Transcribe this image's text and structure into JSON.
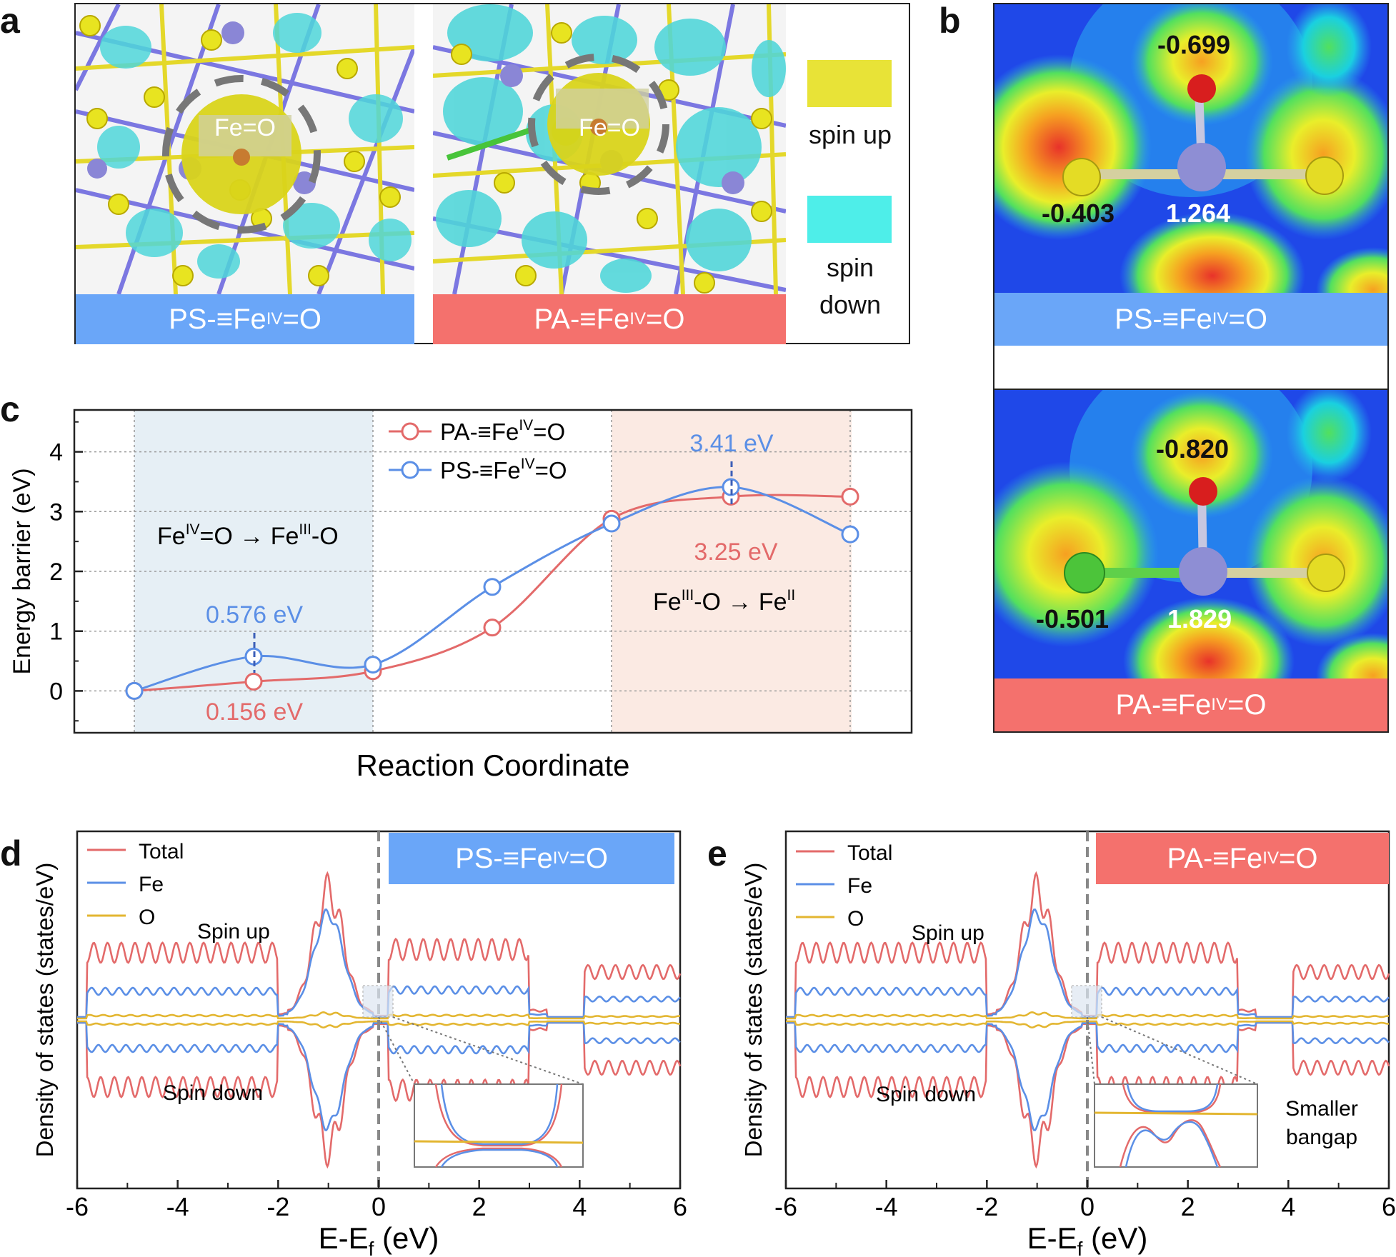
{
  "colors": {
    "ps_blue": "#5b8fe6",
    "pa_red": "#e36a6a",
    "ps_bar": "#6aa6f8",
    "pa_bar": "#f4716d",
    "o_orange": "#e3b631",
    "spin_up_yellow": "#e8e337",
    "spin_down_cyan": "#4eeee9"
  },
  "panel_a": {
    "label": "a",
    "left_center_label": "Fe=O",
    "right_center_label": "Fe=O",
    "left_bar": {
      "pre": "PS-≡Fe",
      "sup": "IV",
      "post": "=O"
    },
    "right_bar": {
      "pre": "PA-≡Fe",
      "sup": "IV",
      "post": "=O"
    },
    "legend_up": "spin up",
    "legend_down_1": "spin",
    "legend_down_2": "down"
  },
  "panel_b": {
    "label": "b",
    "top": {
      "o_charge": "-0.699",
      "s_charge": "-0.403",
      "fe_charge": "1.264",
      "bar": {
        "pre": "PS-≡Fe",
        "sup": "IV",
        "post": "=O"
      }
    },
    "bottom": {
      "o_charge": "-0.820",
      "cl_charge": "-0.501",
      "fe_charge": "1.829",
      "bar": {
        "pre": "PA-≡Fe",
        "sup": "IV",
        "post": "=O"
      }
    }
  },
  "panel_c": {
    "label": "c",
    "region1": {
      "a": "Fe",
      "a_sup": "IV",
      "b": "=O → Fe",
      "b_sup": "III",
      "c": "-O"
    },
    "region2": {
      "a": "Fe",
      "a_sup": "III",
      "b": "-O → Fe",
      "b_sup": "II"
    },
    "ann_ps_1": "0.576 eV",
    "ann_pa_1": "0.156 eV",
    "ann_ps_2": "3.41 eV",
    "ann_pa_2": "3.25 eV"
  },
  "panel_d": {
    "label": "d",
    "bar": {
      "pre": "PS-≡Fe",
      "sup": "IV",
      "post": "=O"
    },
    "spin_up": "Spin up",
    "spin_down": "Spin down"
  },
  "panel_e": {
    "label": "e",
    "bar": {
      "pre": "PA-≡Fe",
      "sup": "IV",
      "post": "=O"
    },
    "spin_up": "Spin up",
    "spin_down": "Spin down",
    "note_1": "Smaller",
    "note_2": "bangap"
  },
  "chart_data": [
    {
      "type": "line",
      "panel": "c",
      "xlabel": "Reaction Coordinate",
      "ylabel": "Energy barrier (eV)",
      "ylim": [
        -0.7,
        4.7
      ],
      "yticks": [
        0,
        1,
        2,
        3,
        4
      ],
      "x": [
        0,
        1,
        2,
        3,
        4,
        5,
        6
      ],
      "series": [
        {
          "name": "PA-≡FeIV=O",
          "legend_pre": "PA-≡Fe",
          "legend_sup": "IV",
          "legend_post": "=O",
          "values": [
            0,
            0.156,
            0.33,
            1.06,
            2.88,
            3.25,
            3.25
          ]
        },
        {
          "name": "PS-≡FeIV=O",
          "legend_pre": "PS-≡Fe",
          "legend_sup": "IV",
          "legend_post": "=O",
          "values": [
            0,
            0.576,
            0.44,
            1.74,
            2.8,
            3.41,
            2.62
          ]
        }
      ],
      "legend_position": "top-center",
      "grid": "dotted horizontal"
    },
    {
      "type": "line",
      "panel": "d",
      "xlabel": "E-E",
      "xlabel_sub": "f",
      "xlabel_unit": " (eV)",
      "ylabel": "Density of states (states/eV)",
      "xlim": [
        -6,
        6
      ],
      "xticks": [
        -6,
        -4,
        -2,
        0,
        2,
        4,
        6
      ],
      "series": [
        {
          "name": "Total"
        },
        {
          "name": "Fe"
        },
        {
          "name": "O"
        }
      ]
    },
    {
      "type": "line",
      "panel": "e",
      "xlabel": "E-E",
      "xlabel_sub": "f",
      "xlabel_unit": " (eV)",
      "ylabel": "Density of states (states/eV)",
      "xlim": [
        -6,
        6
      ],
      "xticks": [
        -6,
        -4,
        -2,
        0,
        2,
        4,
        6
      ],
      "series": [
        {
          "name": "Total"
        },
        {
          "name": "Fe"
        },
        {
          "name": "O"
        }
      ]
    }
  ]
}
